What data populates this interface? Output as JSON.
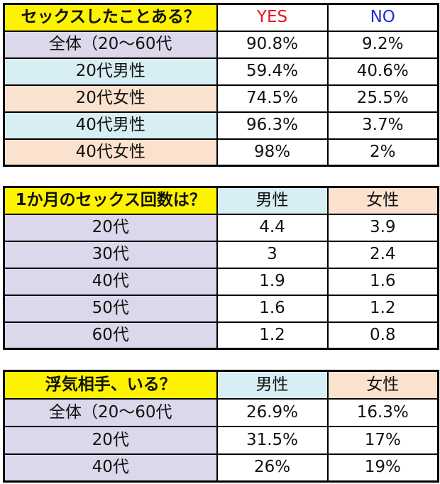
{
  "colors": {
    "title_bg": "#fdf300",
    "lavender": "#dcd7ea",
    "light_blue": "#d8eef5",
    "peach": "#fbe2cf",
    "yes": "#e8141e",
    "no": "#1e2fd0"
  },
  "table1": {
    "title": "セックスしたことある？",
    "col_yes": "YES",
    "col_no": "NO",
    "rows": [
      {
        "label": "全体（20〜60代",
        "yes": "90.8%",
        "no": "9.2%"
      },
      {
        "label": "20代男性",
        "yes": "59.4%",
        "no": "40.6%"
      },
      {
        "label": "20代女性",
        "yes": "74.5%",
        "no": "25.5%"
      },
      {
        "label": "40代男性",
        "yes": "96.3%",
        "no": "3.7%"
      },
      {
        "label": "40代女性",
        "yes": "98%",
        "no": "2%"
      }
    ]
  },
  "table2": {
    "title": "1か月のセックス回数は？",
    "col_male": "男性",
    "col_female": "女性",
    "rows": [
      {
        "label": "20代",
        "male": "4.4",
        "female": "3.9"
      },
      {
        "label": "30代",
        "male": "3",
        "female": "2.4"
      },
      {
        "label": "40代",
        "male": "1.9",
        "female": "1.6"
      },
      {
        "label": "50代",
        "male": "1.6",
        "female": "1.2"
      },
      {
        "label": "60代",
        "male": "1.2",
        "female": "0.8"
      }
    ]
  },
  "table3": {
    "title": "浮気相手、いる？",
    "col_male": "男性",
    "col_female": "女性",
    "rows": [
      {
        "label": "全体（20〜60代",
        "male": "26.9%",
        "female": "16.3%"
      },
      {
        "label": "20代",
        "male": "31.5%",
        "female": "17%"
      },
      {
        "label": "40代",
        "male": "26%",
        "female": "19%"
      }
    ]
  }
}
